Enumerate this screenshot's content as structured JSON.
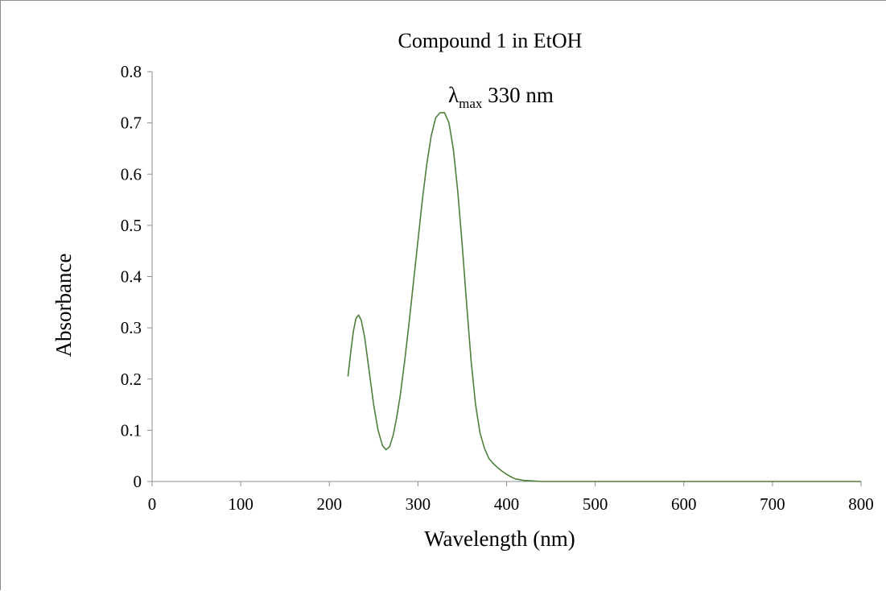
{
  "chart_data": {
    "type": "line",
    "title": "Compound 1 in EtOH",
    "xlabel": "Wavelength (nm)",
    "ylabel": "Absorbance",
    "xlim": [
      0,
      800
    ],
    "ylim": [
      0,
      0.8
    ],
    "x_ticks": [
      "0",
      "100",
      "200",
      "300",
      "400",
      "500",
      "600",
      "700",
      "800"
    ],
    "y_ticks": [
      "0",
      "0.1",
      "0.2",
      "0.3",
      "0.4",
      "0.5",
      "0.6",
      "0.7",
      "0.8"
    ],
    "grid": false,
    "legend": "none",
    "annotation": {
      "symbol": "λ",
      "subscript": "max",
      "text": " 330 nm"
    },
    "series": [
      {
        "color": "#4f7f3a",
        "x": [
          221,
          224,
          227,
          230,
          233,
          236,
          240,
          245,
          250,
          255,
          260,
          264,
          268,
          272,
          276,
          280,
          285,
          290,
          295,
          300,
          305,
          310,
          315,
          320,
          325,
          330,
          335,
          340,
          345,
          350,
          355,
          360,
          365,
          370,
          375,
          380,
          385,
          390,
          395,
          400,
          405,
          410,
          420,
          430,
          440,
          460,
          500,
          600,
          700,
          800
        ],
        "y": [
          0.205,
          0.25,
          0.292,
          0.318,
          0.325,
          0.315,
          0.28,
          0.215,
          0.15,
          0.1,
          0.07,
          0.062,
          0.068,
          0.09,
          0.125,
          0.168,
          0.235,
          0.31,
          0.39,
          0.47,
          0.55,
          0.62,
          0.675,
          0.71,
          0.72,
          0.72,
          0.7,
          0.648,
          0.565,
          0.46,
          0.345,
          0.235,
          0.15,
          0.095,
          0.065,
          0.045,
          0.035,
          0.027,
          0.02,
          0.014,
          0.009,
          0.005,
          0.002,
          0.001,
          0.0,
          0.0,
          0.0,
          0.0,
          0.0,
          0.0
        ]
      }
    ]
  }
}
